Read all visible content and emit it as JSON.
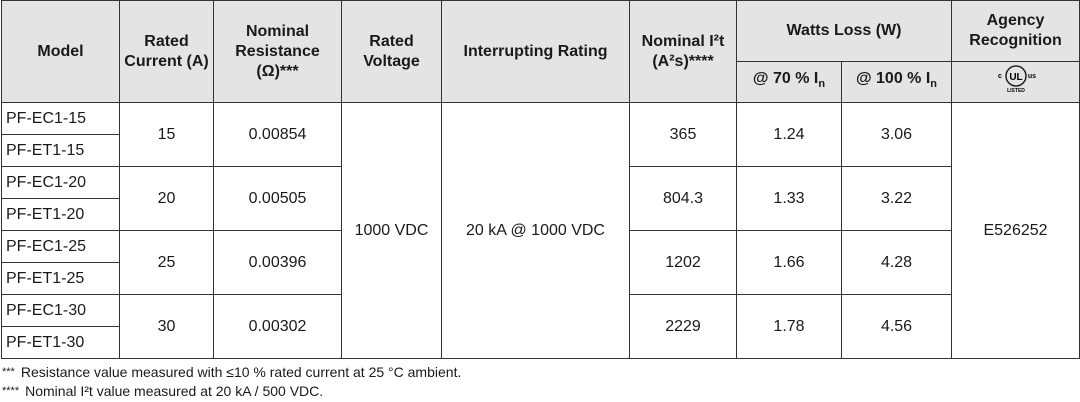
{
  "table": {
    "header": {
      "model": "Model",
      "rated_current": "Rated Current (A)",
      "nominal_resistance": "Nominal Resistance (Ω)***",
      "rated_voltage": "Rated Voltage",
      "interrupting_rating": "Interrupting Rating",
      "nominal_i2t": "Nominal I²t (A²s)****",
      "watts_loss": "Watts Loss (W)",
      "w70": {
        "text": "@ 70 % I",
        "sub": "n"
      },
      "w100": {
        "text": "@ 100 % I",
        "sub": "n"
      },
      "agency": "Agency Recognition",
      "logo": {
        "c": "c",
        "ul": "UL",
        "us": "us",
        "listed": "LISTED"
      }
    },
    "rated_voltage": "1000 VDC",
    "interrupting_rating": "20 kA @ 1000 VDC",
    "agency": "E526252",
    "rows": [
      {
        "models": [
          "PF-EC1-15",
          "PF-ET1-15"
        ],
        "current": 15,
        "resistance": 0.00854,
        "i2t": 365,
        "w70": 1.24,
        "w100": 3.06
      },
      {
        "models": [
          "PF-EC1-20",
          "PF-ET1-20"
        ],
        "current": 20,
        "resistance": 0.00505,
        "i2t": 804.3,
        "w70": 1.33,
        "w100": 3.22
      },
      {
        "models": [
          "PF-EC1-25",
          "PF-ET1-25"
        ],
        "current": 25,
        "resistance": 0.00396,
        "i2t": 1202,
        "w70": 1.66,
        "w100": 4.28
      },
      {
        "models": [
          "PF-EC1-30",
          "PF-ET1-30"
        ],
        "current": 30,
        "resistance": 0.00302,
        "i2t": 2229,
        "w70": 1.78,
        "w100": 4.56
      }
    ],
    "footnotes": [
      {
        "mark": "***",
        "text": "Resistance value measured with ≤10 % rated current at 25 °C ambient."
      },
      {
        "mark": "****",
        "text": "Nominal I²t value measured at 20 kA / 500 VDC."
      }
    ]
  }
}
